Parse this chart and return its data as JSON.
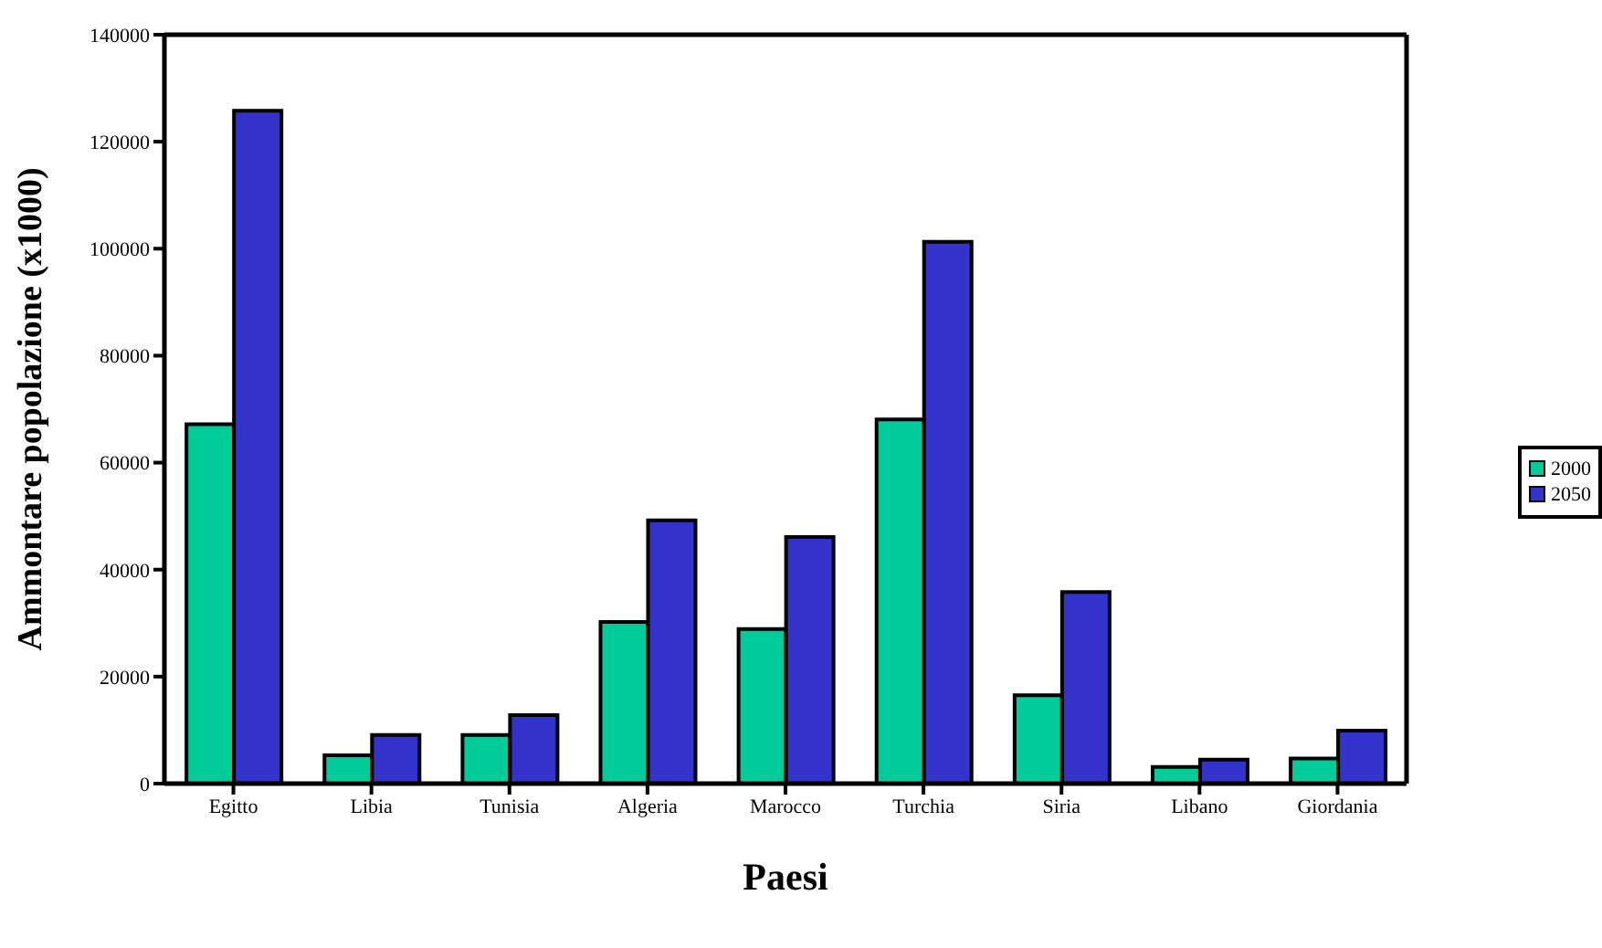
{
  "chart_data": {
    "type": "bar",
    "xlabel": "Paesi",
    "ylabel": "Ammontare popolazione (x1000)",
    "categories": [
      "Egitto",
      "Libia",
      "Tunisia",
      "Algeria",
      "Marocco",
      "Turchia",
      "Siria",
      "Libano",
      "Giordania"
    ],
    "series": [
      {
        "name": "2000",
        "color": "#00cc99",
        "values": [
          67200,
          5300,
          9100,
          30200,
          28900,
          68100,
          16500,
          3100,
          4700
        ]
      },
      {
        "name": "2050",
        "color": "#3333cc",
        "values": [
          125800,
          9100,
          12800,
          49200,
          46100,
          101300,
          35800,
          4500,
          9900
        ]
      }
    ],
    "ylim": [
      0,
      140000
    ],
    "yticks": [
      0,
      20000,
      40000,
      60000,
      80000,
      100000,
      120000,
      140000
    ],
    "grid": false,
    "legend": "right"
  }
}
